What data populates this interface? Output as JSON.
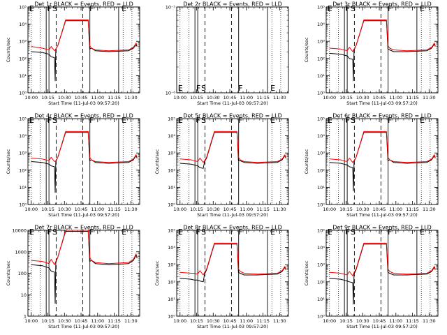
{
  "figure": {
    "background": "#ffffff",
    "colors": {
      "events": "#000000",
      "lld": "#ff0000"
    }
  },
  "chart_data": [
    {
      "type": "line",
      "title": "Det 1r BLACK = Events, RED = LLD",
      "ylim_exp": [
        0,
        5
      ],
      "y_style": "exp",
      "empty": false,
      "xlabel": "Start Time (11-Jul-03 09:57:20)",
      "ylabel": "Counts/sec",
      "x_ticks": [
        "10:00",
        "10:15",
        "10:30",
        "10:45",
        "11:00",
        "11:15",
        "11:30"
      ],
      "flags": [
        "E",
        "F",
        "S",
        "F",
        "E"
      ],
      "series": [
        {
          "name": "Events",
          "color": "#000000",
          "x": [
            0,
            10,
            13,
            16,
            18,
            21,
            21.6,
            22.2,
            24,
            31,
            51.5,
            52.8,
            54.4,
            58,
            70,
            88,
            92.3,
            94.8,
            95.6
          ],
          "y": [
            2.4,
            2.35,
            2.3,
            2.25,
            2.1,
            2.05,
            0.7,
            2.55,
            2.75,
            4.2,
            4.2,
            2.55,
            2.6,
            2.45,
            2.4,
            2.45,
            2.6,
            2.8,
            2.7
          ]
        },
        {
          "name": "LLD",
          "color": "#ff0000",
          "x": [
            0,
            10,
            13,
            16,
            18,
            21,
            22.2,
            24,
            31,
            51.5,
            52.8,
            54.4,
            58,
            70,
            88,
            92.3,
            94.8,
            95.6
          ],
          "y": [
            2.7,
            2.6,
            2.55,
            2.5,
            2.7,
            2.45,
            2.55,
            2.75,
            4.25,
            4.25,
            2.75,
            2.6,
            2.5,
            2.45,
            2.5,
            2.65,
            2.9,
            2.75
          ]
        }
      ]
    },
    {
      "type": "line",
      "title": "Det 2r BLACK = Events, RED = LLD",
      "ylim_exp": [
        -6,
        -5
      ],
      "y_style": "exp",
      "empty": true,
      "xlabel": "Start Time (11-Jul-03 09:57:20)",
      "ylabel": "",
      "x_ticks": [
        "10:00",
        "10:15",
        "10:30",
        "10:45",
        "11:00",
        "11:15",
        "11:30"
      ],
      "flags": [
        "E",
        "F",
        "S",
        "F",
        "E"
      ],
      "series": []
    },
    {
      "type": "line",
      "title": "Det 3r BLACK = Events, RED = LLD",
      "ylim_exp": [
        0,
        5
      ],
      "y_style": "exp",
      "empty": false,
      "xlabel": "Start Time (11-Jul-03 09:57:20)",
      "ylabel": "Counts/sec",
      "x_ticks": [
        "10:00",
        "10:15",
        "10:30",
        "10:45",
        "11:00",
        "11:15",
        "11:30"
      ],
      "flags": [
        "E",
        "F",
        "S",
        "F",
        "E"
      ],
      "series": [
        {
          "name": "Events",
          "color": "#000000",
          "x": [
            0,
            10,
            13,
            16,
            18,
            21,
            21.6,
            22.2,
            24,
            31,
            51.5,
            52.8,
            54.4,
            58,
            70,
            88,
            92.3,
            94.8,
            95.6
          ],
          "y": [
            2.3,
            2.25,
            2.2,
            2.15,
            2.0,
            1.95,
            0.7,
            2.5,
            2.75,
            4.2,
            4.2,
            2.55,
            2.5,
            2.4,
            2.4,
            2.45,
            2.6,
            2.85,
            2.7
          ]
        },
        {
          "name": "LLD",
          "color": "#ff0000",
          "x": [
            0,
            10,
            13,
            16,
            18,
            21,
            22.2,
            24,
            31,
            51.5,
            52.8,
            54.4,
            58,
            70,
            88,
            92.3,
            94.8,
            95.6
          ],
          "y": [
            2.6,
            2.55,
            2.5,
            2.45,
            2.65,
            2.4,
            2.55,
            2.75,
            4.25,
            4.25,
            2.75,
            2.6,
            2.5,
            2.45,
            2.5,
            2.65,
            2.9,
            2.75
          ]
        }
      ]
    },
    {
      "type": "line",
      "title": "Det 4r BLACK = Events, RED = LLD",
      "ylim_exp": [
        0,
        5
      ],
      "y_style": "exp",
      "empty": false,
      "xlabel": "Start Time (11-Jul-03 09:57:20)",
      "ylabel": "Counts/sec",
      "x_ticks": [
        "10:00",
        "10:15",
        "10:30",
        "10:45",
        "11:00",
        "11:15",
        "11:30"
      ],
      "flags": [
        "E",
        "F",
        "S",
        "F",
        "E"
      ],
      "series": [
        {
          "name": "Events",
          "color": "#000000",
          "x": [
            0,
            10,
            13,
            16,
            18,
            21,
            21.6,
            22.2,
            24,
            31,
            51.5,
            52.8,
            54.4,
            58,
            70,
            88,
            92.3,
            94.8,
            95.6
          ],
          "y": [
            2.5,
            2.45,
            2.4,
            2.35,
            2.25,
            2.2,
            0.7,
            2.5,
            2.75,
            4.2,
            4.2,
            2.55,
            2.6,
            2.45,
            2.4,
            2.45,
            2.6,
            2.85,
            2.7
          ]
        },
        {
          "name": "LLD",
          "color": "#ff0000",
          "x": [
            0,
            10,
            13,
            16,
            18,
            21,
            22.2,
            24,
            31,
            51.5,
            52.8,
            54.4,
            58,
            70,
            88,
            92.3,
            94.8,
            95.6
          ],
          "y": [
            2.7,
            2.65,
            2.6,
            2.55,
            2.75,
            2.5,
            2.55,
            2.75,
            4.25,
            4.25,
            2.75,
            2.6,
            2.5,
            2.45,
            2.5,
            2.65,
            2.9,
            2.75
          ]
        }
      ]
    },
    {
      "type": "line",
      "title": "Det 5r BLACK = Events, RED = LLD",
      "ylim_exp": [
        0,
        5
      ],
      "y_style": "exp",
      "empty": false,
      "xlabel": "Start Time (11-Jul-03 09:57:20)",
      "ylabel": "Counts/sec",
      "x_ticks": [
        "10:00",
        "10:15",
        "10:30",
        "10:45",
        "11:00",
        "11:15",
        "11:30"
      ],
      "flags": [
        "E",
        "F",
        "S",
        "F",
        "E"
      ],
      "series": [
        {
          "name": "Events",
          "color": "#000000",
          "x": [
            0,
            10,
            13,
            16,
            18,
            21,
            22.2,
            24,
            31,
            51.5,
            52.8,
            54.4,
            58,
            70,
            88,
            92.3,
            94.8,
            95.6
          ],
          "y": [
            2.4,
            2.35,
            2.3,
            2.25,
            2.15,
            2.1,
            2.5,
            2.7,
            4.2,
            4.2,
            2.55,
            2.55,
            2.45,
            2.4,
            2.45,
            2.6,
            2.85,
            2.7
          ]
        },
        {
          "name": "LLD",
          "color": "#ff0000",
          "x": [
            0,
            10,
            13,
            16,
            18,
            21,
            22.2,
            24,
            31,
            51.5,
            52.8,
            54.4,
            58,
            70,
            88,
            92.3,
            94.8,
            95.6
          ],
          "y": [
            2.65,
            2.6,
            2.55,
            2.5,
            2.7,
            2.45,
            2.55,
            2.75,
            4.25,
            4.25,
            2.75,
            2.6,
            2.5,
            2.45,
            2.5,
            2.65,
            2.9,
            2.75
          ]
        }
      ]
    },
    {
      "type": "line",
      "title": "Det 6r BLACK = Events, RED = LLD",
      "ylim_exp": [
        0,
        5
      ],
      "y_style": "exp",
      "empty": false,
      "xlabel": "Start Time (11-Jul-03 09:57:20)",
      "ylabel": "Counts/sec",
      "x_ticks": [
        "10:00",
        "10:15",
        "10:30",
        "10:45",
        "11:00",
        "11:15",
        "11:30"
      ],
      "flags": [
        "E",
        "F",
        "S",
        "F",
        "E"
      ],
      "series": [
        {
          "name": "Events",
          "color": "#000000",
          "x": [
            0,
            10,
            13,
            16,
            18,
            21,
            21.6,
            22.2,
            24,
            31,
            51.5,
            52.8,
            54.4,
            58,
            70,
            88,
            92.3,
            94.8,
            95.6
          ],
          "y": [
            2.45,
            2.4,
            2.35,
            2.3,
            2.2,
            2.15,
            0.8,
            2.5,
            2.75,
            4.2,
            4.2,
            2.55,
            2.6,
            2.45,
            2.4,
            2.45,
            2.6,
            2.85,
            2.7
          ]
        },
        {
          "name": "LLD",
          "color": "#ff0000",
          "x": [
            0,
            10,
            13,
            16,
            18,
            21,
            22.2,
            24,
            31,
            51.5,
            52.8,
            54.4,
            58,
            70,
            88,
            92.3,
            94.8,
            95.6
          ],
          "y": [
            2.65,
            2.6,
            2.55,
            2.5,
            2.7,
            2.45,
            2.55,
            2.75,
            4.25,
            4.25,
            2.75,
            2.6,
            2.5,
            2.45,
            2.5,
            2.65,
            2.9,
            2.75
          ]
        }
      ]
    },
    {
      "type": "line",
      "title": "Det 7r BLACK = Events, RED = LLD",
      "ylim_exp": [
        0,
        4
      ],
      "y_style": "plain",
      "empty": false,
      "xlabel": "Start Time (11-Jul-03 09:57:20)",
      "ylabel": "Counts/sec",
      "y_tick_labels": [
        "1",
        "10",
        "100",
        "1000",
        "10000"
      ],
      "x_ticks": [
        "10:00",
        "10:15",
        "10:30",
        "10:45",
        "11:00",
        "11:15",
        "11:30"
      ],
      "flags": [
        "E",
        "F",
        "S",
        "F",
        "E"
      ],
      "series": [
        {
          "name": "Events",
          "color": "#000000",
          "x": [
            0,
            10,
            13,
            16,
            18,
            21,
            21.6,
            22.2,
            24,
            31,
            51.5,
            52.8,
            54.4,
            58,
            70,
            88,
            92.3,
            94.8,
            95.6
          ],
          "y": [
            2.4,
            2.35,
            2.3,
            2.25,
            2.1,
            2.05,
            0.6,
            2.5,
            2.75,
            3.95,
            3.95,
            2.55,
            2.6,
            2.45,
            2.4,
            2.45,
            2.6,
            2.85,
            2.7
          ]
        },
        {
          "name": "LLD",
          "color": "#ff0000",
          "x": [
            0,
            10,
            13,
            16,
            18,
            21,
            22.2,
            24,
            31,
            51.5,
            52.8,
            54.4,
            58,
            70,
            88,
            92.3,
            94.8,
            95.6
          ],
          "y": [
            2.6,
            2.55,
            2.5,
            2.45,
            2.65,
            2.4,
            2.55,
            2.75,
            4.0,
            4.0,
            2.75,
            2.6,
            2.5,
            2.45,
            2.5,
            2.65,
            2.9,
            2.75
          ]
        }
      ]
    },
    {
      "type": "line",
      "title": "Det 8r BLACK = Events, RED = LLD",
      "ylim_exp": [
        0,
        5
      ],
      "y_style": "exp",
      "empty": false,
      "xlabel": "Start Time (11-Jul-03 09:57:20)",
      "ylabel": "Counts/sec",
      "x_ticks": [
        "10:00",
        "10:15",
        "10:30",
        "10:45",
        "11:00",
        "11:15",
        "11:30"
      ],
      "flags": [
        "E",
        "F",
        "S",
        "F",
        "E"
      ],
      "series": [
        {
          "name": "Events",
          "color": "#000000",
          "x": [
            0,
            10,
            13,
            16,
            18,
            21,
            22.2,
            24,
            31,
            51.5,
            52.8,
            54.4,
            58,
            70,
            88,
            92.3,
            94.8,
            95.6
          ],
          "y": [
            2.2,
            2.15,
            2.1,
            2.1,
            2.05,
            2.0,
            2.45,
            2.7,
            4.2,
            4.2,
            2.55,
            2.5,
            2.4,
            2.4,
            2.45,
            2.6,
            2.85,
            2.7
          ]
        },
        {
          "name": "LLD",
          "color": "#ff0000",
          "x": [
            0,
            10,
            13,
            16,
            18,
            21,
            22.2,
            24,
            31,
            51.5,
            52.8,
            54.4,
            58,
            70,
            88,
            92.3,
            94.8,
            95.6
          ],
          "y": [
            2.55,
            2.5,
            2.5,
            2.45,
            2.65,
            2.4,
            2.55,
            2.75,
            4.25,
            4.25,
            2.75,
            2.6,
            2.5,
            2.45,
            2.5,
            2.65,
            2.9,
            2.75
          ]
        }
      ]
    },
    {
      "type": "line",
      "title": "Det 9r BLACK = Events, RED = LLD",
      "ylim_exp": [
        0,
        5
      ],
      "y_style": "exp",
      "empty": false,
      "xlabel": "Start Time (11-Jul-03 09:57:20)",
      "ylabel": "Counts/sec",
      "x_ticks": [
        "10:00",
        "10:15",
        "10:30",
        "10:45",
        "11:00",
        "11:15",
        "11:30"
      ],
      "flags": [
        "E",
        "F",
        "S",
        "F",
        "E"
      ],
      "series": [
        {
          "name": "Events",
          "color": "#000000",
          "x": [
            0,
            10,
            13,
            16,
            18,
            21,
            21.6,
            22.2,
            24,
            31,
            51.5,
            52.8,
            54.4,
            58,
            70,
            88,
            92.3,
            94.8,
            95.6
          ],
          "y": [
            2.2,
            2.15,
            2.1,
            2.05,
            2.0,
            1.95,
            0.7,
            2.45,
            2.7,
            4.2,
            4.2,
            2.55,
            2.5,
            2.4,
            2.4,
            2.45,
            2.6,
            2.85,
            2.7
          ]
        },
        {
          "name": "LLD",
          "color": "#ff0000",
          "x": [
            0,
            10,
            13,
            16,
            18,
            21,
            22.2,
            24,
            31,
            51.5,
            52.8,
            54.4,
            58,
            70,
            88,
            92.3,
            94.8,
            95.6
          ],
          "y": [
            2.55,
            2.5,
            2.45,
            2.4,
            2.6,
            2.35,
            2.55,
            2.75,
            4.25,
            4.25,
            2.75,
            2.6,
            2.5,
            2.45,
            2.5,
            2.65,
            2.9,
            2.75
          ]
        }
      ]
    }
  ]
}
